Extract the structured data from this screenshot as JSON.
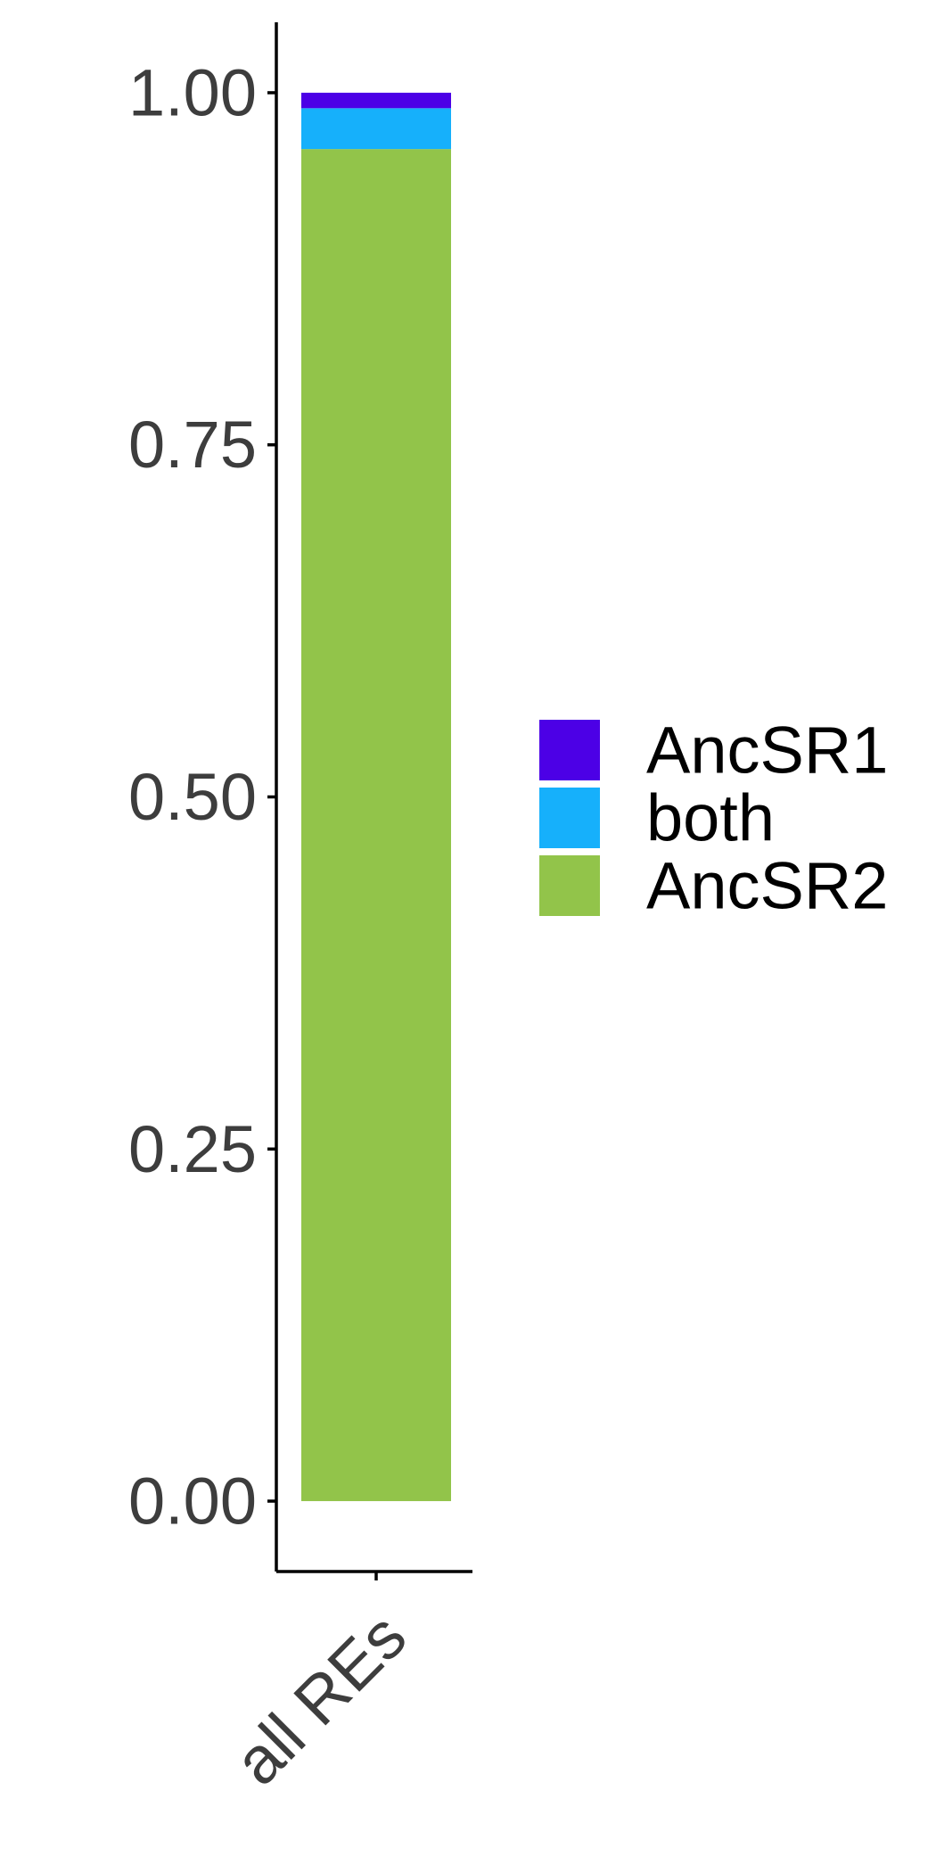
{
  "chart_data": {
    "type": "bar",
    "stacked": true,
    "categories": [
      "all REs"
    ],
    "series": [
      {
        "name": "AncSR2",
        "values": [
          0.96
        ],
        "color": "#92c44a"
      },
      {
        "name": "both",
        "values": [
          0.029
        ],
        "color": "#16b0fb"
      },
      {
        "name": "AncSR1",
        "values": [
          0.011
        ],
        "color": "#4c00e6"
      }
    ],
    "ylim": [
      -0.05,
      1.05
    ],
    "yticks": [
      "0.00",
      "0.25",
      "0.50",
      "0.75",
      "1.00"
    ],
    "ytick_values": [
      0,
      0.25,
      0.5,
      0.75,
      1.0
    ],
    "xlabel": "",
    "ylabel": "",
    "title": "",
    "legend": {
      "position": "right",
      "entries": [
        "AncSR1",
        "both",
        "AncSR2"
      ]
    },
    "grid": false
  }
}
